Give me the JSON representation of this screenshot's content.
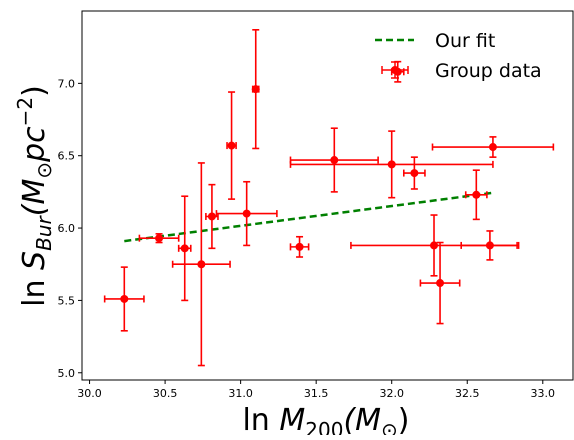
{
  "chart_data": {
    "type": "scatter",
    "xlabel_main": "ln ",
    "xlabel_var": "M",
    "xlabel_sub": "200",
    "xlabel_unit": "(M",
    "xlabel_unit_sub": "⊙",
    "xlabel_end": ")",
    "ylabel_main": "ln ",
    "ylabel_var": "S",
    "ylabel_sub": "Bur",
    "ylabel_unit": "(M",
    "ylabel_unit_sub": "⊙",
    "ylabel_unit2": "pc",
    "ylabel_unit_sup": "−2",
    "ylabel_end": ")",
    "xlim": [
      29.95,
      33.2
    ],
    "ylim": [
      4.95,
      7.5
    ],
    "xticks": [
      30.0,
      30.5,
      31.0,
      31.5,
      32.0,
      32.5,
      33.0
    ],
    "xtick_labels": [
      "30.0",
      "30.5",
      "31.0",
      "31.5",
      "32.0",
      "32.5",
      "33.0"
    ],
    "yticks": [
      5.0,
      5.5,
      6.0,
      6.5,
      7.0
    ],
    "ytick_labels": [
      "5.0",
      "5.5",
      "6.0",
      "6.5",
      "7.0"
    ],
    "grid": false,
    "legend_position": "top-right",
    "series": [
      {
        "name": "Our fit",
        "kind": "line",
        "style": "dashed",
        "color": "#008000",
        "points": [
          [
            30.23,
            5.91
          ],
          [
            32.68,
            6.245
          ]
        ]
      },
      {
        "name": "Group data",
        "kind": "errorbar",
        "color": "#ff0000",
        "points": [
          {
            "x": 30.23,
            "y": 5.51,
            "xerr": 0.13,
            "yerr": 0.22
          },
          {
            "x": 30.46,
            "y": 5.93,
            "xerr": 0.13,
            "yerr": 0.03
          },
          {
            "x": 30.63,
            "y": 5.86,
            "xerr": 0.04,
            "yerr": 0.36
          },
          {
            "x": 30.74,
            "y": 5.75,
            "xerr": 0.19,
            "yerr": 0.7
          },
          {
            "x": 30.81,
            "y": 6.08,
            "xerr": 0.04,
            "yerr": 0.22
          },
          {
            "x": 30.94,
            "y": 6.57,
            "xerr": 0.03,
            "yerr": 0.37
          },
          {
            "x": 31.04,
            "y": 6.1,
            "xerr": 0.2,
            "yerr": 0.22
          },
          {
            "x": 31.1,
            "y": 6.96,
            "xerr": 0.02,
            "yerr": 0.41
          },
          {
            "x": 31.39,
            "y": 5.87,
            "xerr": 0.06,
            "yerr": 0.07
          },
          {
            "x": 31.62,
            "y": 6.47,
            "xerr": 0.29,
            "yerr": 0.22
          },
          {
            "x": 32.0,
            "y": 6.44,
            "xerr": 0.67,
            "yerr": 0.23
          },
          {
            "x": 32.04,
            "y": 7.08,
            "xerr": 0.04,
            "yerr": 0.07
          },
          {
            "x": 32.15,
            "y": 6.38,
            "xerr": 0.07,
            "yerr": 0.11
          },
          {
            "x": 32.28,
            "y": 5.88,
            "xerr": 0.55,
            "yerr": 0.21
          },
          {
            "x": 32.32,
            "y": 5.62,
            "xerr": 0.13,
            "yerr": 0.28
          },
          {
            "x": 32.56,
            "y": 6.23,
            "xerr": 0.07,
            "yerr": 0.17
          },
          {
            "x": 32.65,
            "y": 5.88,
            "xerr": 0.19,
            "yerr": 0.1
          },
          {
            "x": 32.67,
            "y": 6.56,
            "xerr": 0.4,
            "yerr": 0.07
          }
        ]
      }
    ]
  }
}
